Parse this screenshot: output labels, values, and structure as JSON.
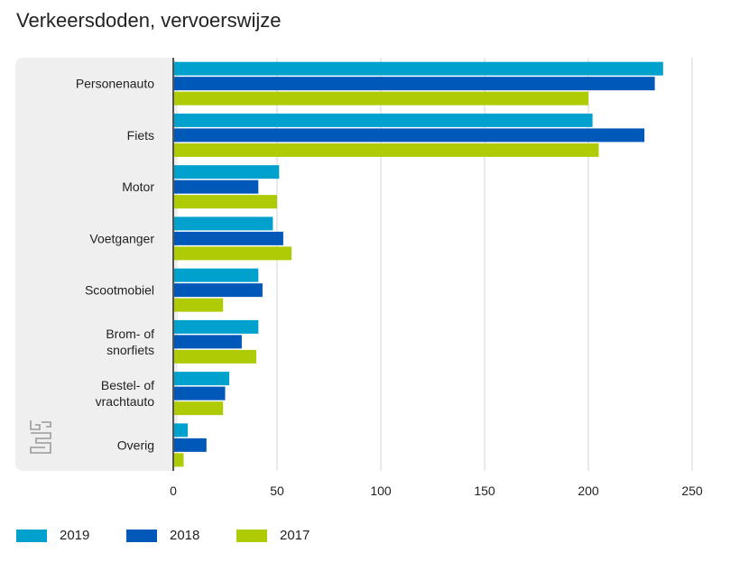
{
  "title": "Verkeersdoden, vervoerswijze",
  "chart_data": {
    "type": "bar",
    "orientation": "horizontal",
    "categories": [
      [
        "Personenauto"
      ],
      [
        "Fiets"
      ],
      [
        "Motor"
      ],
      [
        "Voetganger"
      ],
      [
        "Scootmobiel"
      ],
      [
        "Brom- of",
        "snorfiets"
      ],
      [
        "Bestel- of",
        "vrachtauto"
      ],
      [
        "Overig"
      ]
    ],
    "series": [
      {
        "name": "2019",
        "color": "#00a1cd",
        "values": [
          236,
          202,
          51,
          48,
          41,
          41,
          27,
          7
        ]
      },
      {
        "name": "2018",
        "color": "#0058b8",
        "values": [
          232,
          227,
          41,
          53,
          43,
          33,
          25,
          16
        ]
      },
      {
        "name": "2017",
        "color": "#afcb05",
        "values": [
          200,
          205,
          50,
          57,
          24,
          40,
          24,
          5
        ]
      }
    ],
    "xlim": [
      0,
      250
    ],
    "xticks": [
      0,
      50,
      100,
      150,
      200,
      250
    ],
    "xlabel": "",
    "ylabel": "",
    "grid": true,
    "legend_position": "bottom"
  },
  "logo": "cbs-logo-icon"
}
